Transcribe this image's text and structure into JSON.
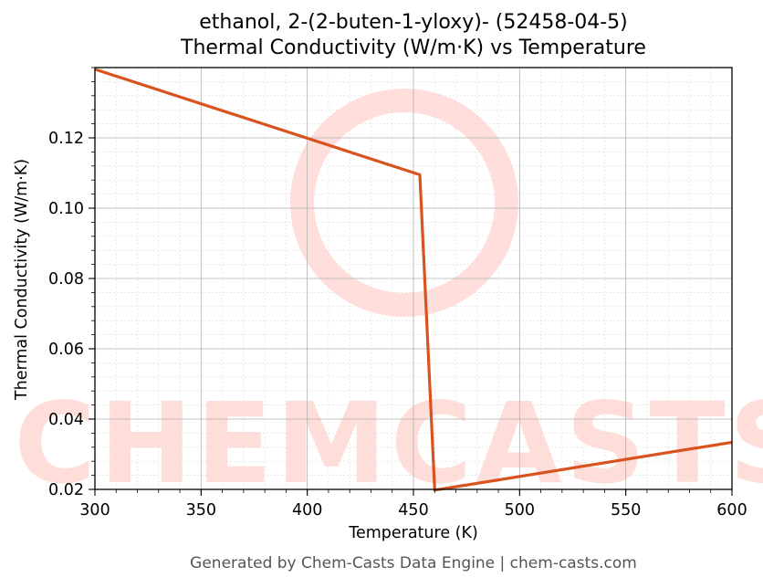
{
  "chart_data": {
    "type": "line",
    "title": "ethanol, 2-(2-buten-1-yloxy)- (52458-04-5)",
    "subtitle": "Thermal Conductivity (W/m·K) vs Temperature",
    "xlabel": "Temperature (K)",
    "ylabel": "Thermal Conductivity (W/m·K)",
    "xlim": [
      300,
      600
    ],
    "ylim": [
      0.02,
      0.14
    ],
    "xticks": [
      300,
      350,
      400,
      450,
      500,
      550,
      600
    ],
    "yticks": [
      0.02,
      0.04,
      0.06,
      0.08,
      0.1,
      0.12
    ],
    "grid": true,
    "series": [
      {
        "color": "#d9531e",
        "x": [
          300,
          453,
          460,
          600
        ],
        "y": [
          0.1395,
          0.1095,
          0.0198,
          0.0334
        ]
      }
    ]
  },
  "watermark": "CHEMCASTS",
  "footer": "Generated by Chem-Casts Data Engine | chem-casts.com"
}
